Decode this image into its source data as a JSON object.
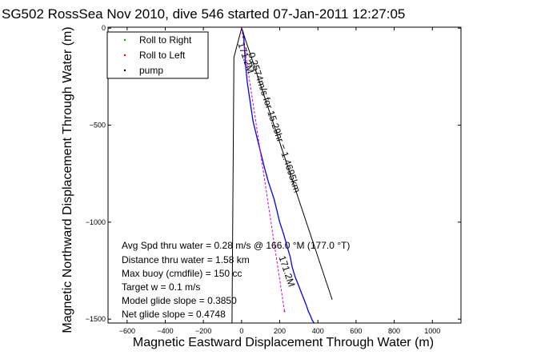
{
  "chart_data": {
    "type": "line",
    "title": "SG502 RossSea Nov 2010, dive 546 started 07-Jan-2011 12:27:05",
    "xlabel": "Magnetic Eastward Displacement Through Water (m)",
    "ylabel": "Magnetic Northward Displacement Through Water (m)",
    "xlim": [
      -700,
      1150
    ],
    "ylim": [
      -1520,
      5
    ],
    "x_ticks": [
      -600,
      -400,
      -200,
      0,
      200,
      400,
      600,
      800,
      1000
    ],
    "x_tick_labels": [
      "−600",
      "−400",
      "−200",
      "0",
      "200",
      "400",
      "600",
      "800",
      "1000"
    ],
    "y_ticks": [
      0,
      -500,
      -1000,
      -1500
    ],
    "y_tick_labels": [
      "0",
      "−500",
      "−1000",
      "−1500"
    ],
    "legend": {
      "placement": "top-left",
      "entries": [
        {
          "label": "Roll to Right",
          "color": "#00aa00",
          "marker": "dot"
        },
        {
          "label": "Roll to Left",
          "color": "#ff0000",
          "marker": "dot"
        },
        {
          "label": "pump",
          "color": "#000000",
          "marker": "dot"
        }
      ]
    },
    "series": [
      {
        "role": "track",
        "color": "#0000ff",
        "x": [
          0,
          8,
          12,
          15,
          20,
          30,
          45,
          60,
          80,
          100,
          120,
          140,
          150,
          160,
          170,
          185,
          200,
          220,
          240,
          255,
          265,
          280,
          300,
          320,
          340,
          350,
          360,
          370,
          380
        ],
        "y": [
          0,
          -20,
          -50,
          -100,
          -180,
          -280,
          -380,
          -480,
          -560,
          -640,
          -720,
          -790,
          -820,
          -850,
          -880,
          -940,
          -1000,
          -1060,
          -1130,
          -1180,
          -1230,
          -1280,
          -1330,
          -1380,
          -1430,
          -1460,
          -1480,
          -1505,
          -1520
        ]
      },
      {
        "role": "current",
        "color": "#000000",
        "x": [
          0,
          475
        ],
        "y": [
          0,
          -1400
        ]
      },
      {
        "role": "heading",
        "color": "#000000",
        "x": [
          0,
          -40,
          -50
        ],
        "y": [
          0,
          -150,
          -1520
        ]
      },
      {
        "role": "projection",
        "color": "#cc00cc",
        "x": [
          0,
          225
        ],
        "y": [
          0,
          -1460
        ]
      }
    ],
    "line_labels": [
      {
        "text": "0.2574m/s for 15.29hr = 1.4695km",
        "color": "#000000"
      },
      {
        "text": "171.2M",
        "color": "#000000"
      },
      {
        "text": "171.2M",
        "color": "#000000"
      }
    ],
    "stats": [
      "Avg Spd thru water = 0.28 m/s @ 166.0   °M (177.0 °T)",
      "Distance thru water = 1.58 km",
      "Max buoy (cmdfile) = 150 cc",
      "Target w = 0.1 m/s",
      "Model glide slope = 0.3850",
      "Net glide slope = 0.4748"
    ],
    "grid": false
  }
}
